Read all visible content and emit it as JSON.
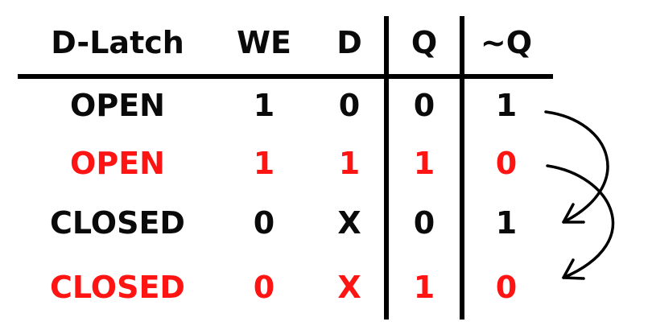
{
  "table": {
    "headers": {
      "label": "D-Latch",
      "we": "WE",
      "d": "D",
      "q": "Q",
      "nq": "~Q"
    },
    "rows": [
      {
        "label": "OPEN",
        "we": "1",
        "d": "0",
        "q": "0",
        "nq": "1",
        "color": "#0a0a0a"
      },
      {
        "label": "OPEN",
        "we": "1",
        "d": "1",
        "q": "1",
        "nq": "0",
        "color": "#ff1414"
      },
      {
        "label": "CLOSED",
        "we": "0",
        "d": "X",
        "q": "0",
        "nq": "1",
        "color": "#0a0a0a"
      },
      {
        "label": "CLOSED",
        "we": "0",
        "d": "X",
        "q": "1",
        "nq": "0",
        "color": "#ff1414"
      }
    ]
  },
  "colors": {
    "text": "#0a0a0a",
    "highlight": "#ff1414",
    "lines": "#000000"
  }
}
